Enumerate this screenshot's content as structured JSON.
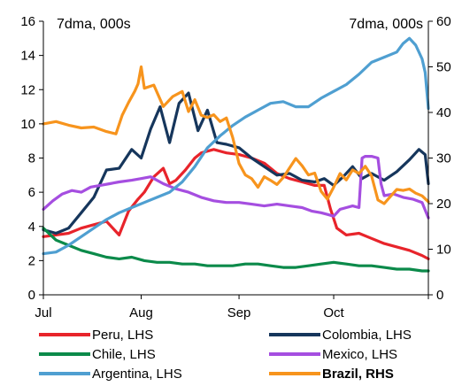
{
  "chart_data": {
    "type": "line",
    "title": "",
    "left_unit_label": "7dma, 000s",
    "right_unit_label": "7dma, 000s",
    "x_tick_labels": [
      "Jul",
      "Aug",
      "Sep",
      "Oct"
    ],
    "x_tick_days": [
      0,
      31,
      62,
      92
    ],
    "x_range_days": [
      0,
      122
    ],
    "y_left": {
      "min": 0,
      "max": 16,
      "ticks": [
        0,
        2,
        4,
        6,
        8,
        10,
        12,
        14,
        16
      ]
    },
    "y_right": {
      "min": 0,
      "max": 60,
      "ticks": [
        0,
        10,
        20,
        30,
        40,
        50,
        60
      ]
    },
    "grid": false,
    "legend_position": "bottom",
    "series": [
      {
        "name": "Peru, LHS",
        "axis": "left",
        "color": "#e8242b",
        "bold": false,
        "points": [
          [
            0,
            3.4
          ],
          [
            4,
            3.5
          ],
          [
            8,
            3.6
          ],
          [
            12,
            3.9
          ],
          [
            16,
            4.1
          ],
          [
            20,
            4.3
          ],
          [
            24,
            3.5
          ],
          [
            27,
            4.9
          ],
          [
            30,
            5.6
          ],
          [
            32,
            6.0
          ],
          [
            35,
            6.9
          ],
          [
            38,
            7.4
          ],
          [
            40,
            6.5
          ],
          [
            42,
            6.7
          ],
          [
            45,
            7.3
          ],
          [
            48,
            8.0
          ],
          [
            50,
            8.3
          ],
          [
            54,
            8.5
          ],
          [
            58,
            8.3
          ],
          [
            62,
            8.2
          ],
          [
            66,
            8.0
          ],
          [
            70,
            7.7
          ],
          [
            74,
            7.1
          ],
          [
            78,
            6.8
          ],
          [
            82,
            6.6
          ],
          [
            86,
            6.4
          ],
          [
            89,
            6.4
          ],
          [
            91,
            5.0
          ],
          [
            93,
            3.9
          ],
          [
            96,
            3.5
          ],
          [
            100,
            3.6
          ],
          [
            104,
            3.3
          ],
          [
            108,
            3.0
          ],
          [
            112,
            2.8
          ],
          [
            116,
            2.6
          ],
          [
            120,
            2.3
          ],
          [
            122,
            2.1
          ]
        ]
      },
      {
        "name": "Colombia, LHS",
        "axis": "left",
        "color": "#16365c",
        "bold": false,
        "points": [
          [
            0,
            3.8
          ],
          [
            4,
            3.6
          ],
          [
            8,
            3.9
          ],
          [
            12,
            4.8
          ],
          [
            16,
            5.7
          ],
          [
            20,
            7.3
          ],
          [
            24,
            7.4
          ],
          [
            28,
            8.5
          ],
          [
            31,
            8.0
          ],
          [
            34,
            9.7
          ],
          [
            37,
            11.0
          ],
          [
            40,
            8.9
          ],
          [
            43,
            11.2
          ],
          [
            46,
            11.8
          ],
          [
            49,
            9.6
          ],
          [
            52,
            10.8
          ],
          [
            55,
            8.9
          ],
          [
            58,
            8.8
          ],
          [
            62,
            8.6
          ],
          [
            66,
            8.0
          ],
          [
            70,
            7.5
          ],
          [
            74,
            7.0
          ],
          [
            78,
            7.1
          ],
          [
            82,
            6.7
          ],
          [
            86,
            6.6
          ],
          [
            89,
            6.8
          ],
          [
            92,
            6.4
          ],
          [
            95,
            6.9
          ],
          [
            98,
            7.5
          ],
          [
            101,
            6.8
          ],
          [
            104,
            7.1
          ],
          [
            108,
            6.7
          ],
          [
            112,
            7.2
          ],
          [
            116,
            7.9
          ],
          [
            119,
            8.5
          ],
          [
            121,
            8.2
          ],
          [
            122,
            6.5
          ]
        ]
      },
      {
        "name": "Chile, LHS",
        "axis": "left",
        "color": "#0b8a4a",
        "bold": false,
        "points": [
          [
            0,
            3.9
          ],
          [
            4,
            3.2
          ],
          [
            8,
            2.9
          ],
          [
            12,
            2.6
          ],
          [
            16,
            2.4
          ],
          [
            20,
            2.2
          ],
          [
            24,
            2.1
          ],
          [
            28,
            2.2
          ],
          [
            32,
            2.0
          ],
          [
            36,
            1.9
          ],
          [
            40,
            1.9
          ],
          [
            44,
            1.8
          ],
          [
            48,
            1.8
          ],
          [
            52,
            1.7
          ],
          [
            56,
            1.7
          ],
          [
            60,
            1.7
          ],
          [
            64,
            1.8
          ],
          [
            68,
            1.8
          ],
          [
            72,
            1.7
          ],
          [
            76,
            1.6
          ],
          [
            80,
            1.6
          ],
          [
            84,
            1.7
          ],
          [
            88,
            1.8
          ],
          [
            92,
            1.9
          ],
          [
            96,
            1.8
          ],
          [
            100,
            1.7
          ],
          [
            104,
            1.7
          ],
          [
            108,
            1.6
          ],
          [
            112,
            1.5
          ],
          [
            116,
            1.5
          ],
          [
            120,
            1.4
          ],
          [
            122,
            1.4
          ]
        ]
      },
      {
        "name": "Mexico, LHS",
        "axis": "left",
        "color": "#a54ee0",
        "bold": false,
        "points": [
          [
            0,
            5.0
          ],
          [
            3,
            5.5
          ],
          [
            6,
            5.9
          ],
          [
            9,
            6.1
          ],
          [
            12,
            6.0
          ],
          [
            15,
            6.3
          ],
          [
            18,
            6.4
          ],
          [
            21,
            6.5
          ],
          [
            24,
            6.6
          ],
          [
            28,
            6.7
          ],
          [
            31,
            6.8
          ],
          [
            34,
            6.9
          ],
          [
            38,
            6.5
          ],
          [
            42,
            6.2
          ],
          [
            46,
            6.0
          ],
          [
            50,
            5.7
          ],
          [
            54,
            5.5
          ],
          [
            58,
            5.4
          ],
          [
            62,
            5.4
          ],
          [
            66,
            5.3
          ],
          [
            70,
            5.2
          ],
          [
            74,
            5.3
          ],
          [
            78,
            5.2
          ],
          [
            82,
            5.1
          ],
          [
            85,
            4.9
          ],
          [
            88,
            4.8
          ],
          [
            90,
            4.7
          ],
          [
            92,
            4.6
          ],
          [
            94,
            5.0
          ],
          [
            96,
            5.1
          ],
          [
            98,
            5.2
          ],
          [
            100,
            5.1
          ],
          [
            101,
            8.0
          ],
          [
            102,
            8.1
          ],
          [
            104,
            8.1
          ],
          [
            106,
            8.0
          ],
          [
            107,
            6.5
          ],
          [
            108,
            5.8
          ],
          [
            111,
            5.9
          ],
          [
            114,
            5.7
          ],
          [
            117,
            5.6
          ],
          [
            120,
            5.4
          ],
          [
            122,
            4.5
          ]
        ]
      },
      {
        "name": "Argentina, LHS",
        "axis": "left",
        "color": "#4f9fd1",
        "bold": false,
        "points": [
          [
            0,
            2.4
          ],
          [
            4,
            2.5
          ],
          [
            8,
            2.9
          ],
          [
            12,
            3.4
          ],
          [
            16,
            3.9
          ],
          [
            20,
            4.4
          ],
          [
            24,
            4.8
          ],
          [
            28,
            5.1
          ],
          [
            32,
            5.4
          ],
          [
            36,
            5.7
          ],
          [
            40,
            6.0
          ],
          [
            44,
            6.6
          ],
          [
            48,
            7.5
          ],
          [
            52,
            8.6
          ],
          [
            56,
            9.3
          ],
          [
            60,
            9.9
          ],
          [
            64,
            10.4
          ],
          [
            68,
            10.8
          ],
          [
            72,
            11.2
          ],
          [
            76,
            11.3
          ],
          [
            80,
            11.0
          ],
          [
            84,
            11.0
          ],
          [
            88,
            11.5
          ],
          [
            92,
            11.9
          ],
          [
            96,
            12.3
          ],
          [
            100,
            12.9
          ],
          [
            104,
            13.6
          ],
          [
            108,
            13.9
          ],
          [
            112,
            14.2
          ],
          [
            114,
            14.7
          ],
          [
            116,
            15.0
          ],
          [
            118,
            14.6
          ],
          [
            120,
            13.8
          ],
          [
            121,
            13.0
          ],
          [
            122,
            10.9
          ]
        ]
      },
      {
        "name": "Brazil, RHS",
        "axis": "right",
        "color": "#f7941d",
        "bold": true,
        "points": [
          [
            0,
            37.5
          ],
          [
            4,
            38.0
          ],
          [
            8,
            37.2
          ],
          [
            12,
            36.6
          ],
          [
            16,
            36.8
          ],
          [
            20,
            35.8
          ],
          [
            23,
            35.3
          ],
          [
            25,
            39.4
          ],
          [
            27,
            42.2
          ],
          [
            29,
            44.7
          ],
          [
            30,
            46.3
          ],
          [
            31,
            50.0
          ],
          [
            32,
            45.3
          ],
          [
            35,
            46.0
          ],
          [
            38,
            41.3
          ],
          [
            41,
            43.5
          ],
          [
            44,
            44.6
          ],
          [
            46,
            40.2
          ],
          [
            48,
            42.8
          ],
          [
            50,
            39.4
          ],
          [
            52,
            38.9
          ],
          [
            54,
            39.5
          ],
          [
            56,
            38.0
          ],
          [
            58,
            38.8
          ],
          [
            60,
            34.5
          ],
          [
            62,
            28.8
          ],
          [
            64,
            26.3
          ],
          [
            66,
            25.5
          ],
          [
            68,
            23.6
          ],
          [
            70,
            25.9
          ],
          [
            72,
            25.1
          ],
          [
            74,
            24.2
          ],
          [
            76,
            25.7
          ],
          [
            78,
            27.8
          ],
          [
            80,
            29.9
          ],
          [
            82,
            28.3
          ],
          [
            84,
            26.3
          ],
          [
            86,
            26.7
          ],
          [
            88,
            22.7
          ],
          [
            90,
            21.0
          ],
          [
            92,
            23.6
          ],
          [
            94,
            26.6
          ],
          [
            96,
            25.2
          ],
          [
            98,
            27.4
          ],
          [
            100,
            26.6
          ],
          [
            102,
            28.2
          ],
          [
            104,
            26.1
          ],
          [
            106,
            20.8
          ],
          [
            108,
            20.0
          ],
          [
            110,
            21.6
          ],
          [
            112,
            23.1
          ],
          [
            114,
            22.9
          ],
          [
            116,
            23.2
          ],
          [
            118,
            22.3
          ],
          [
            120,
            21.7
          ],
          [
            122,
            20.4
          ]
        ]
      }
    ],
    "legend": [
      {
        "label": "Peru, LHS",
        "color": "#e8242b",
        "bold": false
      },
      {
        "label": "Colombia, LHS",
        "color": "#16365c",
        "bold": false
      },
      {
        "label": "Chile, LHS",
        "color": "#0b8a4a",
        "bold": false
      },
      {
        "label": "Mexico, LHS",
        "color": "#a54ee0",
        "bold": false
      },
      {
        "label": "Argentina, LHS",
        "color": "#4f9fd1",
        "bold": false
      },
      {
        "label": "Brazil, RHS",
        "color": "#f7941d",
        "bold": true
      }
    ]
  }
}
